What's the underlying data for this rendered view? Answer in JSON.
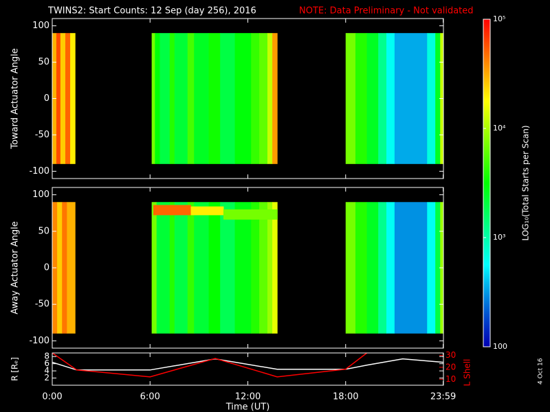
{
  "title": "TWINS2: Start Counts: 12 Sep (day 256), 2016",
  "note": "NOTE: Data Preliminary - Not validated",
  "date_stamp": "4 Oct 16",
  "colorbar": {
    "label": "LOG₁₀(Total Starts per Scan)",
    "lim": [
      100,
      100000
    ],
    "log": true,
    "ticks": [
      {
        "value": 100000,
        "label": "10⁵"
      },
      {
        "value": 10000,
        "label": "10⁴"
      },
      {
        "value": 1000,
        "label": "10³"
      },
      100
    ]
  },
  "chart_data": [
    {
      "type": "heatmap",
      "ylabel": "Toward Actuator Angle",
      "xlim": [
        0,
        24
      ],
      "ylim": [
        -110,
        110
      ],
      "yticks": [
        100,
        50,
        0,
        -50,
        -100
      ],
      "angle_range": [
        -90,
        90
      ],
      "cells": [
        {
          "t": [
            0,
            0.25
          ],
          "value": 30000
        },
        {
          "t": [
            0.25,
            0.5
          ],
          "value": 60000
        },
        {
          "t": [
            0.5,
            0.8
          ],
          "value": 25000
        },
        {
          "t": [
            0.8,
            1.1
          ],
          "value": 50000
        },
        {
          "t": [
            1.1,
            1.4
          ],
          "value": 20000
        },
        {
          "t": [
            6.1,
            6.3
          ],
          "value": 7000
        },
        {
          "t": [
            6.3,
            6.6
          ],
          "value": 3000
        },
        {
          "t": [
            6.6,
            7.2
          ],
          "value": 2000
        },
        {
          "t": [
            7.2,
            7.5
          ],
          "value": 4000
        },
        {
          "t": [
            7.5,
            8.3
          ],
          "value": 2200
        },
        {
          "t": [
            8.3,
            8.7
          ],
          "value": 5000
        },
        {
          "t": [
            8.7,
            9.6
          ],
          "value": 2500
        },
        {
          "t": [
            9.6,
            10.3
          ],
          "value": 3500
        },
        {
          "t": [
            10.3,
            11.2
          ],
          "value": 2000
        },
        {
          "t": [
            11.2,
            12.2
          ],
          "value": 3000
        },
        {
          "t": [
            12.2,
            12.7
          ],
          "value": 4500
        },
        {
          "t": [
            12.7,
            13.2
          ],
          "value": 6000
        },
        {
          "t": [
            13.2,
            13.5
          ],
          "value": 12000
        },
        {
          "t": [
            13.5,
            13.8
          ],
          "value": 35000
        },
        {
          "t": [
            18,
            18.6
          ],
          "value": 7000
        },
        {
          "t": [
            18.6,
            19.3
          ],
          "value": 4000
        },
        {
          "t": [
            19.3,
            20
          ],
          "value": 2500
        },
        {
          "t": [
            20,
            20.5
          ],
          "value": 1200
        },
        {
          "t": [
            20.5,
            21
          ],
          "value": 600
        },
        {
          "t": [
            21,
            23
          ],
          "value": 350
        },
        {
          "t": [
            23,
            23.5
          ],
          "value": 700
        },
        {
          "t": [
            23.5,
            23.8
          ],
          "value": 2500
        },
        {
          "t": [
            23.8,
            24
          ],
          "value": 12000
        }
      ]
    },
    {
      "type": "heatmap",
      "ylabel": "Away Actuator Angle",
      "xlim": [
        0,
        24
      ],
      "ylim": [
        -110,
        110
      ],
      "yticks": [
        100,
        50,
        0,
        -50,
        -100
      ],
      "angle_range": [
        -90,
        90
      ],
      "cells": [
        {
          "t": [
            0,
            0.3
          ],
          "value": 40000
        },
        {
          "t": [
            0.3,
            0.6
          ],
          "value": 25000
        },
        {
          "t": [
            0.6,
            0.9
          ],
          "value": 45000
        },
        {
          "t": [
            0.9,
            1.4
          ],
          "value": 30000
        },
        {
          "t": [
            6.1,
            6.4
          ],
          "value": 7000
        },
        {
          "t": [
            6.4,
            7.2
          ],
          "value": 2200
        },
        {
          "t": [
            7.2,
            7.5
          ],
          "value": 4000
        },
        {
          "t": [
            7.5,
            8.3
          ],
          "value": 2000
        },
        {
          "t": [
            8.3,
            8.7
          ],
          "value": 4500
        },
        {
          "t": [
            8.7,
            9.6
          ],
          "value": 2200
        },
        {
          "t": [
            9.6,
            10.3
          ],
          "value": 3200
        },
        {
          "t": [
            10.3,
            11.2
          ],
          "value": 1800
        },
        {
          "t": [
            11.2,
            12.2
          ],
          "value": 2800
        },
        {
          "t": [
            12.2,
            12.7
          ],
          "value": 4000
        },
        {
          "t": [
            12.7,
            13.2
          ],
          "value": 6000
        },
        {
          "t": [
            13.2,
            13.5
          ],
          "value": 9000
        },
        {
          "t": [
            13.5,
            13.8
          ],
          "value": 15000
        },
        {
          "t": [
            18,
            18.6
          ],
          "value": 7000
        },
        {
          "t": [
            18.6,
            19.3
          ],
          "value": 4000
        },
        {
          "t": [
            19.3,
            20
          ],
          "value": 2500
        },
        {
          "t": [
            20,
            20.5
          ],
          "value": 1200
        },
        {
          "t": [
            20.5,
            21
          ],
          "value": 600
        },
        {
          "t": [
            21,
            23
          ],
          "value": 300
        },
        {
          "t": [
            23,
            23.5
          ],
          "value": 600
        },
        {
          "t": [
            23.5,
            23.8
          ],
          "value": 2000
        },
        {
          "t": [
            23.8,
            24
          ],
          "value": 9000
        },
        {
          "t": [
            6.2,
            8.5
          ],
          "angle": [
            72,
            86
          ],
          "value": 50000
        },
        {
          "t": [
            8.5,
            10.5
          ],
          "angle": [
            72,
            84
          ],
          "value": 20000
        },
        {
          "t": [
            10.5,
            13.8
          ],
          "angle": [
            66,
            80
          ],
          "value": 7000
        }
      ]
    },
    {
      "type": "line",
      "xlabel": "Time (UT)",
      "ylabel": "R [Rₑ]",
      "y2label": "L Shell",
      "xlim": [
        0,
        24
      ],
      "ylim": [
        0,
        9
      ],
      "yticks": [
        8,
        6,
        4,
        2
      ],
      "y2lim": [
        5,
        32
      ],
      "y2ticks": [
        30,
        20,
        10
      ],
      "xticks": [
        {
          "value": 0,
          "label": "0:00"
        },
        {
          "value": 6,
          "label": "6:00"
        },
        {
          "value": 12,
          "label": "12:00"
        },
        {
          "value": 18,
          "label": "18:00"
        },
        {
          "value": 23.983,
          "label": "23:59"
        }
      ],
      "x": [
        0,
        1.5,
        6,
        10,
        13.8,
        18,
        19.3,
        21.5,
        23.983
      ],
      "series": [
        {
          "color": "#ffffff",
          "values": [
            6.4,
            4.25,
            4.25,
            7.35,
            4.45,
            4.45,
            5.6,
            7.35,
            6.4
          ]
        },
        {
          "color": "#ff0000",
          "axis": "y2",
          "values": [
            32,
            17.8,
            12,
            27.4,
            12,
            18.4,
            32,
            null,
            null
          ]
        }
      ]
    }
  ]
}
